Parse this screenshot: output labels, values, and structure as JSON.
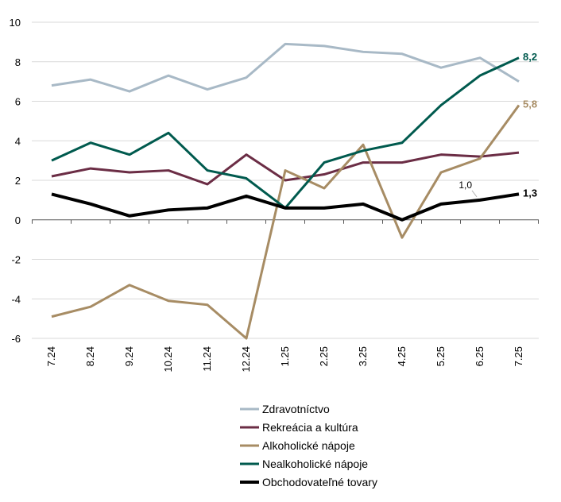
{
  "chart_data": {
    "type": "line",
    "title": "",
    "xlabel": "",
    "ylabel": "",
    "categories": [
      "7.24",
      "8.24",
      "9.24",
      "10.24",
      "11.24",
      "12.24",
      "1.25",
      "2.25",
      "3.25",
      "4.25",
      "5.25",
      "6.25",
      "7.25"
    ],
    "ylim": [
      -6,
      10
    ],
    "yticks": [
      "-6",
      "-4",
      "-2",
      "0",
      "2",
      "4",
      "6",
      "8",
      "10"
    ],
    "grid": true,
    "legend_position": "bottom",
    "series": [
      {
        "name": "Zdravotníctvo",
        "color": "#a8b9c6",
        "values": [
          6.8,
          7.1,
          6.5,
          7.3,
          6.6,
          7.2,
          8.9,
          8.8,
          8.5,
          8.4,
          7.7,
          8.2,
          7.0
        ]
      },
      {
        "name": "Rekreácia a kultúra",
        "color": "#6b2d45",
        "values": [
          2.2,
          2.6,
          2.4,
          2.5,
          1.8,
          3.3,
          2.0,
          2.3,
          2.9,
          2.9,
          3.3,
          3.2,
          3.4
        ]
      },
      {
        "name": "Alkoholické nápoje",
        "color": "#a78c64",
        "values": [
          -4.9,
          -4.4,
          -3.3,
          -4.1,
          -4.3,
          -6.0,
          2.5,
          1.6,
          3.8,
          -0.9,
          2.4,
          3.1,
          5.8
        ]
      },
      {
        "name": "Nealkoholické nápoje",
        "color": "#005a4e",
        "values": [
          3.0,
          3.9,
          3.3,
          4.4,
          2.5,
          2.1,
          0.6,
          2.9,
          3.5,
          3.9,
          5.8,
          7.3,
          8.2
        ]
      },
      {
        "name": "Obchodovateľné tovary",
        "color": "#000000",
        "values": [
          1.3,
          0.8,
          0.2,
          0.5,
          0.6,
          1.2,
          0.6,
          0.6,
          0.8,
          0.0,
          0.8,
          1.0,
          1.3
        ]
      }
    ],
    "annotations": [
      {
        "series": 3,
        "index": 12,
        "text": "8,2",
        "color": "#005a4e"
      },
      {
        "series": 2,
        "index": 12,
        "text": "5,8",
        "color": "#a78c64"
      },
      {
        "series": 4,
        "index": 12,
        "text": "1,3",
        "color": "#000000"
      },
      {
        "series": 4,
        "index": 11,
        "text": "1,0",
        "color": "#000000",
        "plain": true
      }
    ]
  }
}
